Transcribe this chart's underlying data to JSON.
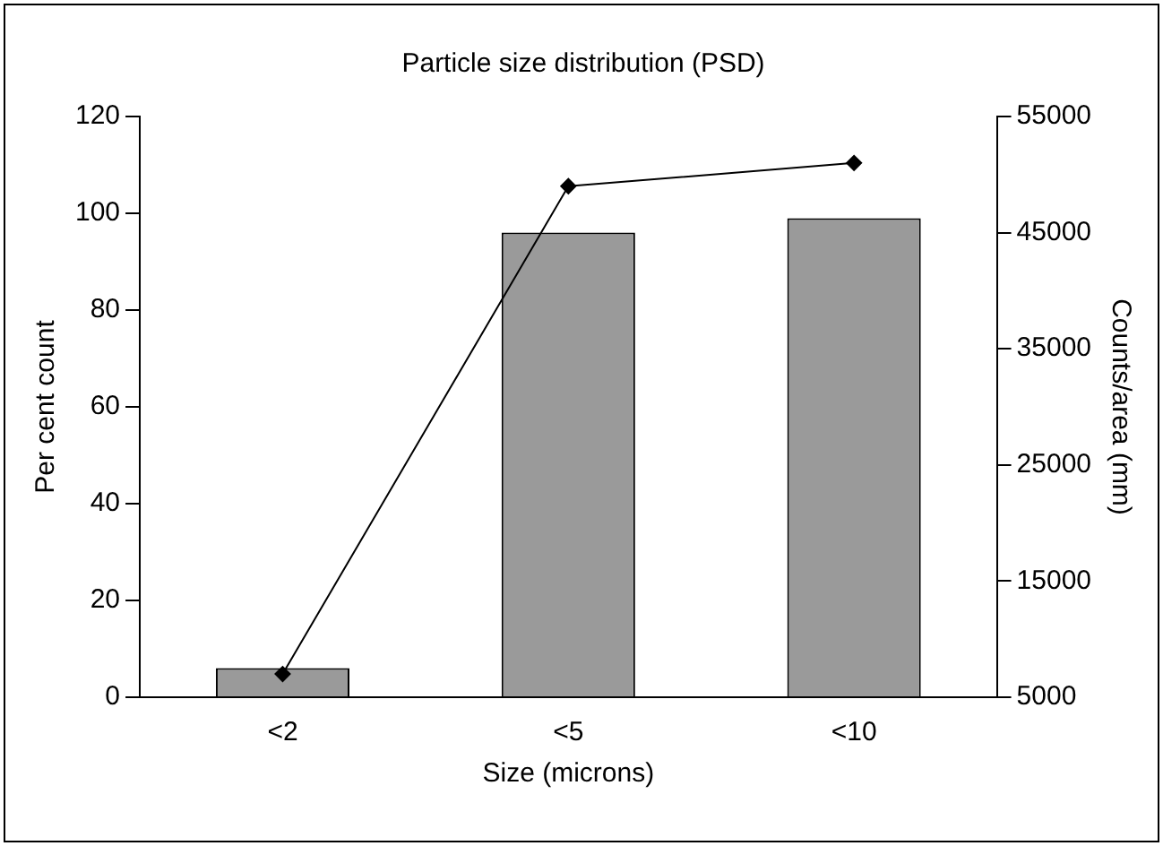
{
  "chart_data": {
    "type": "bar",
    "title": "Particle size distribution (PSD)",
    "xlabel": "Size (microns)",
    "ylabel": "Per cent count",
    "y2label": "Counts/area (mm)",
    "categories": [
      "<2",
      "<5",
      "<10"
    ],
    "series": [
      {
        "color": "#9a9a9a",
        "values": [
          6,
          96,
          99
        ]
      },
      {
        "type": "line",
        "axis": "y2",
        "color": "#000000",
        "marker": "diamond",
        "values": [
          7000,
          49000,
          51000
        ]
      }
    ],
    "ylim": [
      0,
      120
    ],
    "yticks": [
      0,
      20,
      40,
      60,
      80,
      100,
      120
    ],
    "y2lim": [
      5000,
      55000
    ],
    "y2ticks": [
      5000,
      15000,
      25000,
      35000,
      45000,
      55000
    ],
    "grid": false,
    "legend": false
  }
}
